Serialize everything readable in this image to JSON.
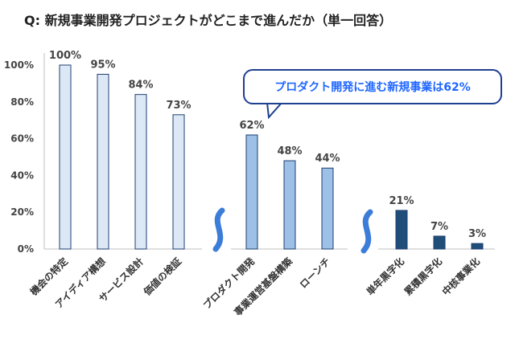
{
  "chart_data": {
    "type": "bar",
    "title": "Q: 新規事業開発プロジェクトがどこまで進んだか（単一回答）",
    "ylim": [
      0,
      100
    ],
    "yticks": [
      "0%",
      "20%",
      "40%",
      "60%",
      "80%",
      "100%"
    ],
    "groups": [
      {
        "color": "#dde8f7",
        "categories": [
          "機会の特定",
          "アイディア構想",
          "サービス設計",
          "価値の検証"
        ],
        "values": [
          100,
          95,
          84,
          73
        ],
        "labels": [
          "100%",
          "95%",
          "84%",
          "73%"
        ]
      },
      {
        "color": "#9dc0e6",
        "categories": [
          "プロダクト開発",
          "事業運営基盤構築",
          "ローンチ"
        ],
        "values": [
          62,
          48,
          44
        ],
        "labels": [
          "62%",
          "48%",
          "44%"
        ]
      },
      {
        "color": "#1f4e79",
        "categories": [
          "単年黒字化",
          "累積黒字化",
          "中核事業化"
        ],
        "values": [
          21,
          7,
          3
        ],
        "labels": [
          "21%",
          "7%",
          "3%"
        ]
      }
    ],
    "annotation": "プロダクト開発に進む新規事業は62%",
    "grid": false,
    "legend": "none"
  },
  "colors": {
    "axis": "#bfbfbf",
    "bar_edge": "#1f3f6f",
    "wave": "#3b7dd8",
    "callout_border": "#1f3f8f",
    "callout_text": "#1f66ff"
  }
}
